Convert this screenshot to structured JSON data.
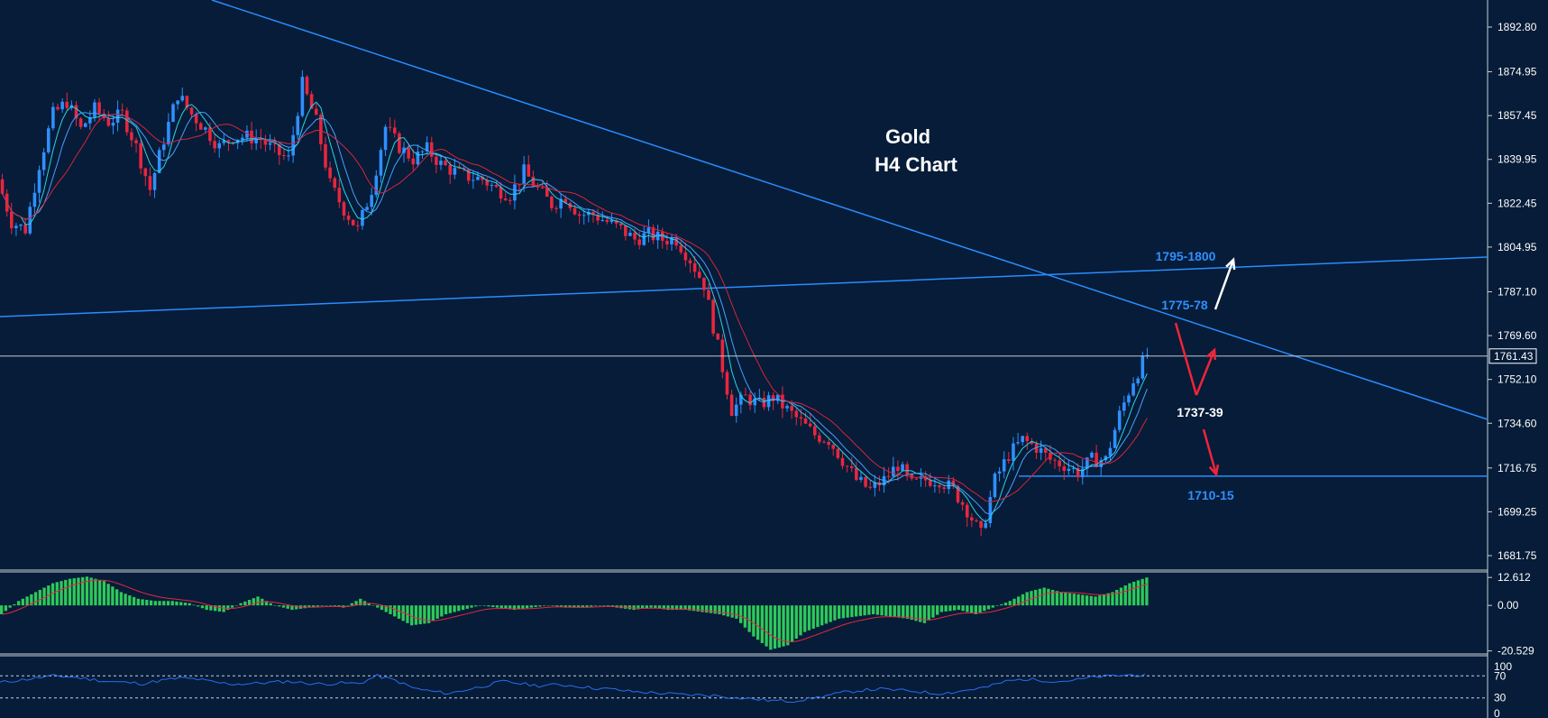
{
  "chart_data": {
    "type": "candlestick",
    "title_line1": "Gold",
    "title_line2": "H4 Chart",
    "y_ticks": [
      "1892.80",
      "1874.95",
      "1857.45",
      "1839.95",
      "1822.45",
      "1804.95",
      "1787.10",
      "1769.60",
      "1752.10",
      "1734.60",
      "1716.75",
      "1699.25",
      "1681.75"
    ],
    "y_range": [
      1674.0,
      1898.0
    ],
    "current_price": "1761.43",
    "current_price_value": 1761.43,
    "annotations": {
      "resistance_high": "1795-1800",
      "resistance_mid": "1775-78",
      "pivot": "1737-39",
      "support": "1710-15"
    },
    "levels": {
      "support_1710": 1713.5
    },
    "price_path": [
      1832,
      1815,
      1812,
      1838,
      1858,
      1863,
      1852,
      1860,
      1855,
      1858,
      1845,
      1828,
      1848,
      1866,
      1858,
      1852,
      1845,
      1849,
      1849,
      1848,
      1843,
      1840,
      1870,
      1855,
      1830,
      1820,
      1812,
      1828,
      1853,
      1845,
      1840,
      1844,
      1838,
      1835,
      1833,
      1832,
      1828,
      1826,
      1835,
      1828,
      1822,
      1825,
      1818,
      1818,
      1815,
      1812,
      1808,
      1810,
      1808,
      1808,
      1800,
      1790,
      1765,
      1740,
      1745,
      1742,
      1745,
      1740,
      1735,
      1730,
      1728,
      1720,
      1712,
      1708,
      1712,
      1718,
      1710,
      1712,
      1712,
      1708,
      1700,
      1690,
      1712,
      1722,
      1728,
      1725,
      1720,
      1718,
      1715,
      1720,
      1720,
      1738,
      1752,
      1762
    ],
    "macd": {
      "ticks": [
        "12.612",
        "0.00",
        "-20.529"
      ],
      "range": [
        -21.5,
        13.5
      ],
      "values": [
        -4,
        2,
        6,
        10,
        12,
        13,
        11,
        6,
        3,
        2,
        2,
        1,
        -2,
        -3,
        1,
        4,
        0,
        -2,
        -1,
        0,
        -1,
        3,
        -1,
        -5,
        -9,
        -8,
        -4,
        -2,
        0,
        -1,
        -2,
        -1,
        0,
        -1,
        -1,
        0,
        -1,
        -2,
        -1,
        -2,
        -2,
        -3,
        -4,
        -6,
        -14,
        -20,
        -18,
        -12,
        -9,
        -6,
        -5,
        -4,
        -5,
        -6,
        -8,
        -3,
        -2,
        -4,
        -1,
        2,
        6,
        8,
        6,
        5,
        4,
        6,
        10,
        12.6
      ]
    },
    "rsi": {
      "ticks": [
        "100",
        "70",
        "30",
        "0"
      ],
      "range": [
        0,
        100
      ],
      "levels": [
        70,
        30
      ],
      "values": [
        58,
        62,
        66,
        70,
        68,
        64,
        60,
        58,
        56,
        62,
        66,
        64,
        58,
        55,
        56,
        58,
        60,
        57,
        55,
        57,
        56,
        70,
        62,
        48,
        42,
        38,
        45,
        52,
        60,
        56,
        52,
        54,
        52,
        48,
        46,
        42,
        40,
        38,
        36,
        35,
        34,
        30,
        28,
        25,
        24,
        28,
        34,
        40,
        44,
        46,
        44,
        42,
        38,
        40,
        45,
        50,
        60,
        64,
        62,
        60,
        63,
        68,
        70,
        72,
        70
      ]
    },
    "colors": {
      "background": "#061c38",
      "bull_candle": "#2f8fff",
      "bear_candle": "#e8263f",
      "trendline": "#2a8cff",
      "ma_fast": "#2ad4e8",
      "ma_slow": "#d8243c",
      "macd_hist": "#2ec95a",
      "macd_signal": "#e8263f",
      "rsi_line": "#2a6cf0",
      "red_arrow": "#f0243a",
      "white_arrow": "#ffffff",
      "label_blue": "#2f8fff",
      "label_white": "#ffffff"
    }
  }
}
